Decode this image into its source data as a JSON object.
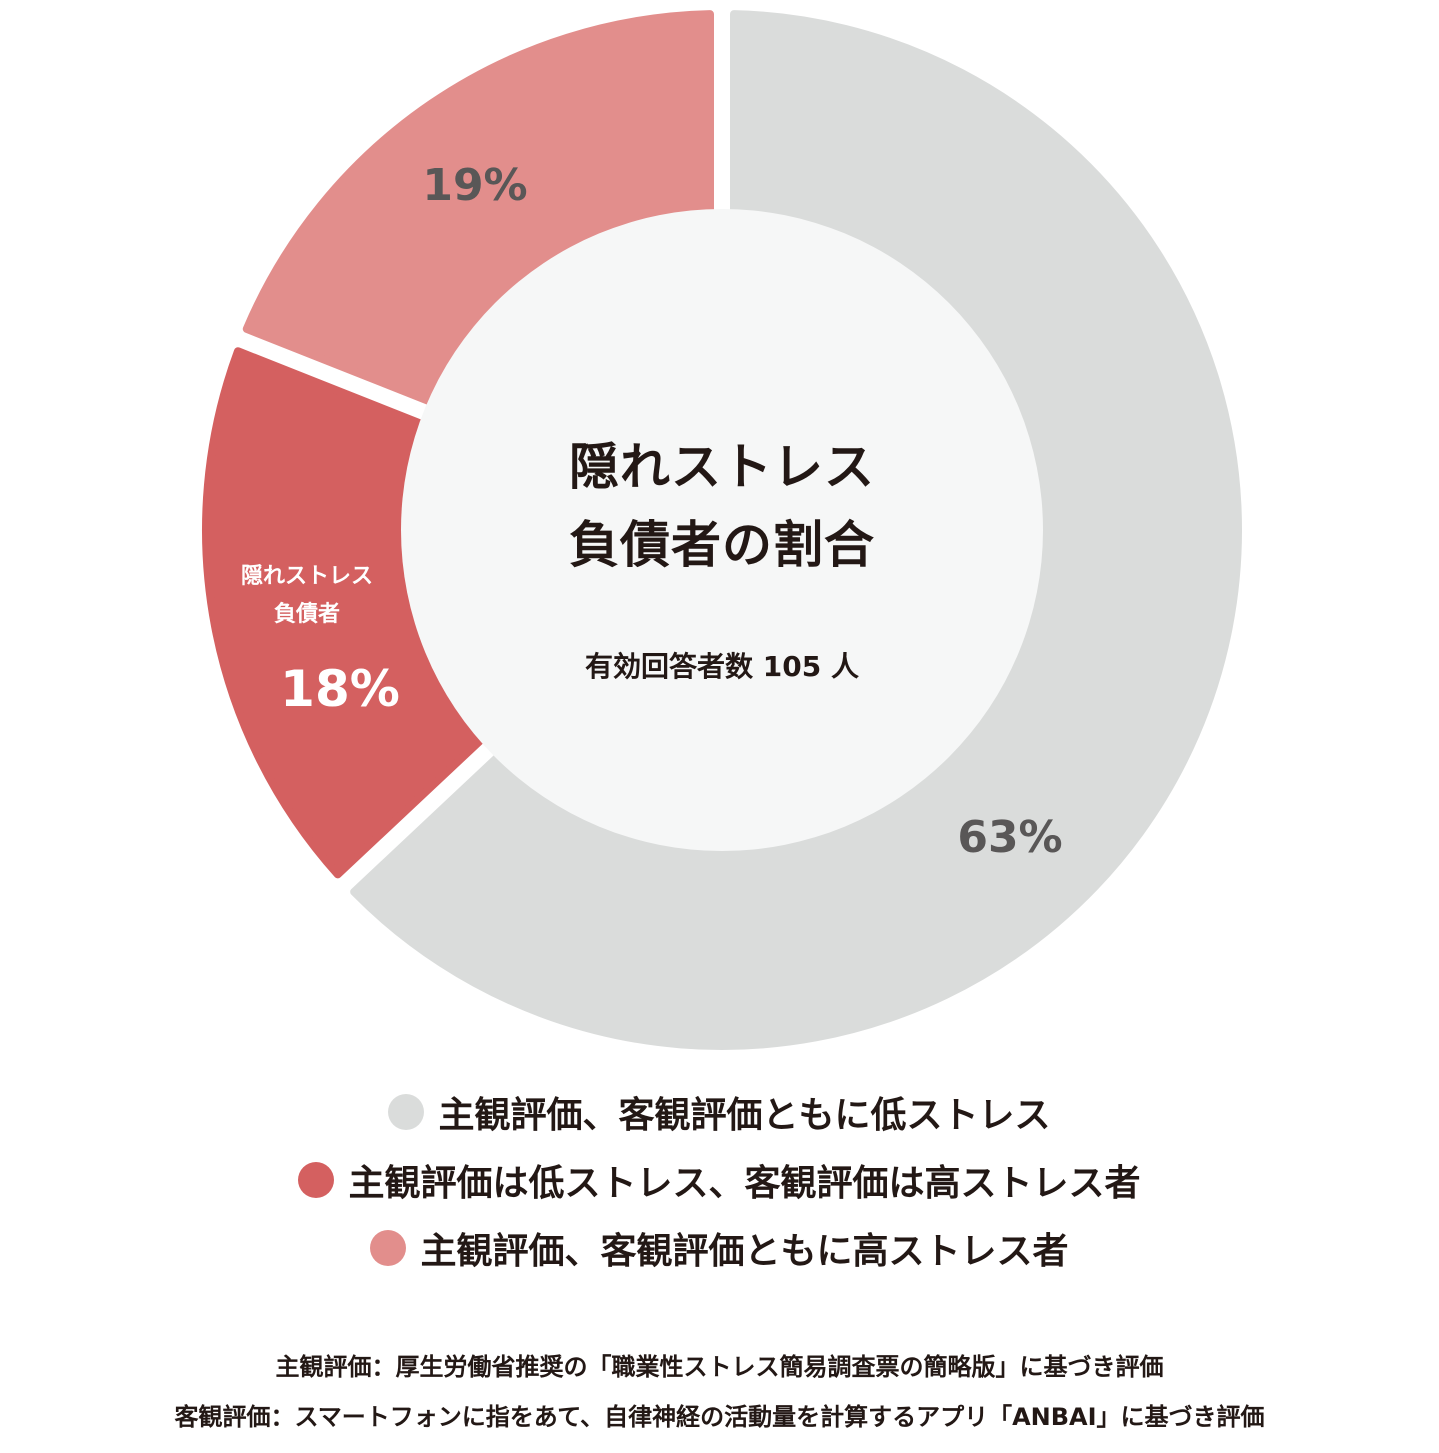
{
  "chart_data": {
    "type": "pie",
    "variant": "donut",
    "title": "隠れストレス負債者の割合",
    "subtitle": "有効回答者数 105 人",
    "categories": [
      "主観評価、客観評価ともに低ストレス",
      "主観評価は低ストレス、客観評価は高ストレス者",
      "主観評価、客観評価ともに高ストレス者"
    ],
    "values": [
      63,
      18,
      19
    ],
    "unit": "%",
    "colors": [
      "#DADCDB",
      "#D46060",
      "#E28E8C"
    ],
    "data_labels": [
      "63%",
      "18%",
      "19%"
    ],
    "annotations": [
      {
        "segment": 1,
        "text": "隠れストレス負債者"
      }
    ],
    "legend_position": "bottom",
    "n_respondents": 105
  },
  "center": {
    "title_line1": "隠れストレス",
    "title_line2": "負債者の割合",
    "subtitle": "有効回答者数 105 人"
  },
  "segment_labels": {
    "gray_pct": "63%",
    "red_name_line1": "隠れストレス",
    "red_name_line2": "負債者",
    "red_pct": "18%",
    "pink_pct": "19%"
  },
  "legend": {
    "items": [
      {
        "label": "主観評価、客観評価ともに低ストレス",
        "color": "#DADCDB"
      },
      {
        "label": "主観評価は低ストレス、客観評価は高ストレス者",
        "color": "#D46060"
      },
      {
        "label": "主観評価、客観評価ともに高ストレス者",
        "color": "#E28E8C"
      }
    ]
  },
  "notes": {
    "line1": "主観評価：厚生労働省推奨の「職業性ストレス簡易調査票の簡略版」に基づき評価",
    "line2": "客観評価：スマートフォンに指をあて、自律神経の活動量を計算するアプリ「ANBAI」に基づき評価"
  },
  "style": {
    "center_fill": "#F6F7F7",
    "label_dark": "#595757",
    "text_dark": "#231815"
  }
}
